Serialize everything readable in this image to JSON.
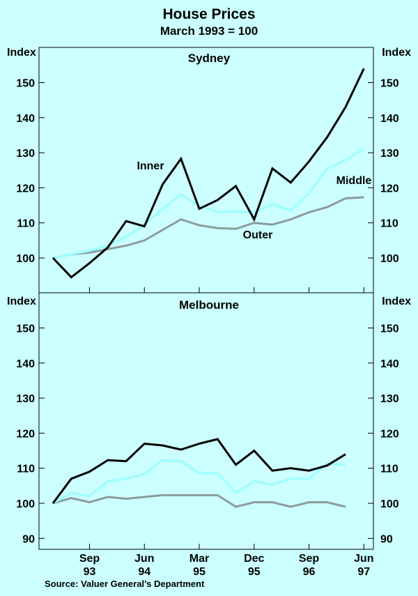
{
  "title": "House Prices",
  "subtitle": "March 1993 = 100",
  "source": "Source:  Valuer General’s Department",
  "colors": {
    "background": "#ccffff",
    "inner": "#000000",
    "middle": "#99ffff",
    "outer": "#8c9c9c"
  },
  "chart_data": [
    {
      "type": "line",
      "title": "Sydney",
      "ylabel": "Index",
      "ylim": [
        90,
        160
      ],
      "yticks": [
        100,
        110,
        120,
        130,
        140,
        150
      ],
      "x": [
        "Mar-93",
        "Jun-93",
        "Sep-93",
        "Dec-93",
        "Mar-94",
        "Jun-94",
        "Sep-94",
        "Dec-94",
        "Mar-95",
        "Jun-95",
        "Sep-95",
        "Dec-95",
        "Mar-96",
        "Jun-96",
        "Sep-96",
        "Dec-96",
        "Mar-97",
        "Jun-97"
      ],
      "series": [
        {
          "name": "Inner",
          "color": "#000000",
          "values": [
            100,
            94.5,
            98.5,
            103,
            110.5,
            109,
            121,
            128.3,
            114,
            116.5,
            120.5,
            111,
            125.5,
            121.5,
            127.5,
            134.5,
            143,
            154
          ]
        },
        {
          "name": "Middle",
          "color": "#99ffff",
          "values": [
            100,
            101,
            102,
            103.5,
            106,
            109.5,
            114,
            118,
            115,
            113,
            113.3,
            113,
            115.3,
            113.5,
            118.5,
            125.5,
            128,
            131
          ]
        },
        {
          "name": "Outer",
          "color": "#8c9c9c",
          "values": [
            100,
            101,
            101.5,
            102.5,
            103.5,
            105,
            108,
            111,
            109.3,
            108.5,
            108.3,
            110,
            109.5,
            111,
            113,
            114.5,
            117,
            117.3
          ]
        }
      ]
    },
    {
      "type": "line",
      "title": "Melbourne",
      "ylabel": "Index",
      "ylim": [
        90,
        160
      ],
      "yticks": [
        90,
        100,
        110,
        120,
        130,
        140,
        150
      ],
      "x": [
        "Mar-93",
        "Jun-93",
        "Sep-93",
        "Dec-93",
        "Mar-94",
        "Jun-94",
        "Sep-94",
        "Dec-94",
        "Mar-95",
        "Jun-95",
        "Sep-95",
        "Dec-95",
        "Mar-96",
        "Jun-96",
        "Sep-96",
        "Dec-96",
        "Mar-97"
      ],
      "series": [
        {
          "color": "#000000",
          "values": [
            100,
            107,
            109,
            112.3,
            112,
            117,
            116.5,
            115.3,
            117,
            118.3,
            111,
            115,
            109.3,
            110,
            109.3,
            110.8,
            114
          ]
        },
        {
          "color": "#99ffff",
          "values": [
            100,
            103,
            102,
            106.3,
            107,
            108.3,
            112.3,
            112,
            108.5,
            108.5,
            103,
            106.3,
            105.3,
            107,
            107,
            111.3,
            111
          ]
        },
        {
          "color": "#8c9c9c",
          "values": [
            100,
            101.5,
            100.3,
            101.8,
            101.3,
            101.8,
            102.3,
            102.3,
            102.3,
            102.3,
            99,
            100.3,
            100.3,
            99,
            100.3,
            100.3,
            99
          ]
        }
      ]
    }
  ],
  "x_axis": {
    "ticks": [
      {
        "month": "Sep",
        "year": "93",
        "index": 2
      },
      {
        "month": "Jun",
        "year": "94",
        "index": 5
      },
      {
        "month": "Mar",
        "year": "95",
        "index": 8
      },
      {
        "month": "Dec",
        "year": "95",
        "index": 11
      },
      {
        "month": "Sep",
        "year": "96",
        "index": 14
      },
      {
        "month": "Jun",
        "year": "97",
        "index": 17
      }
    ]
  }
}
